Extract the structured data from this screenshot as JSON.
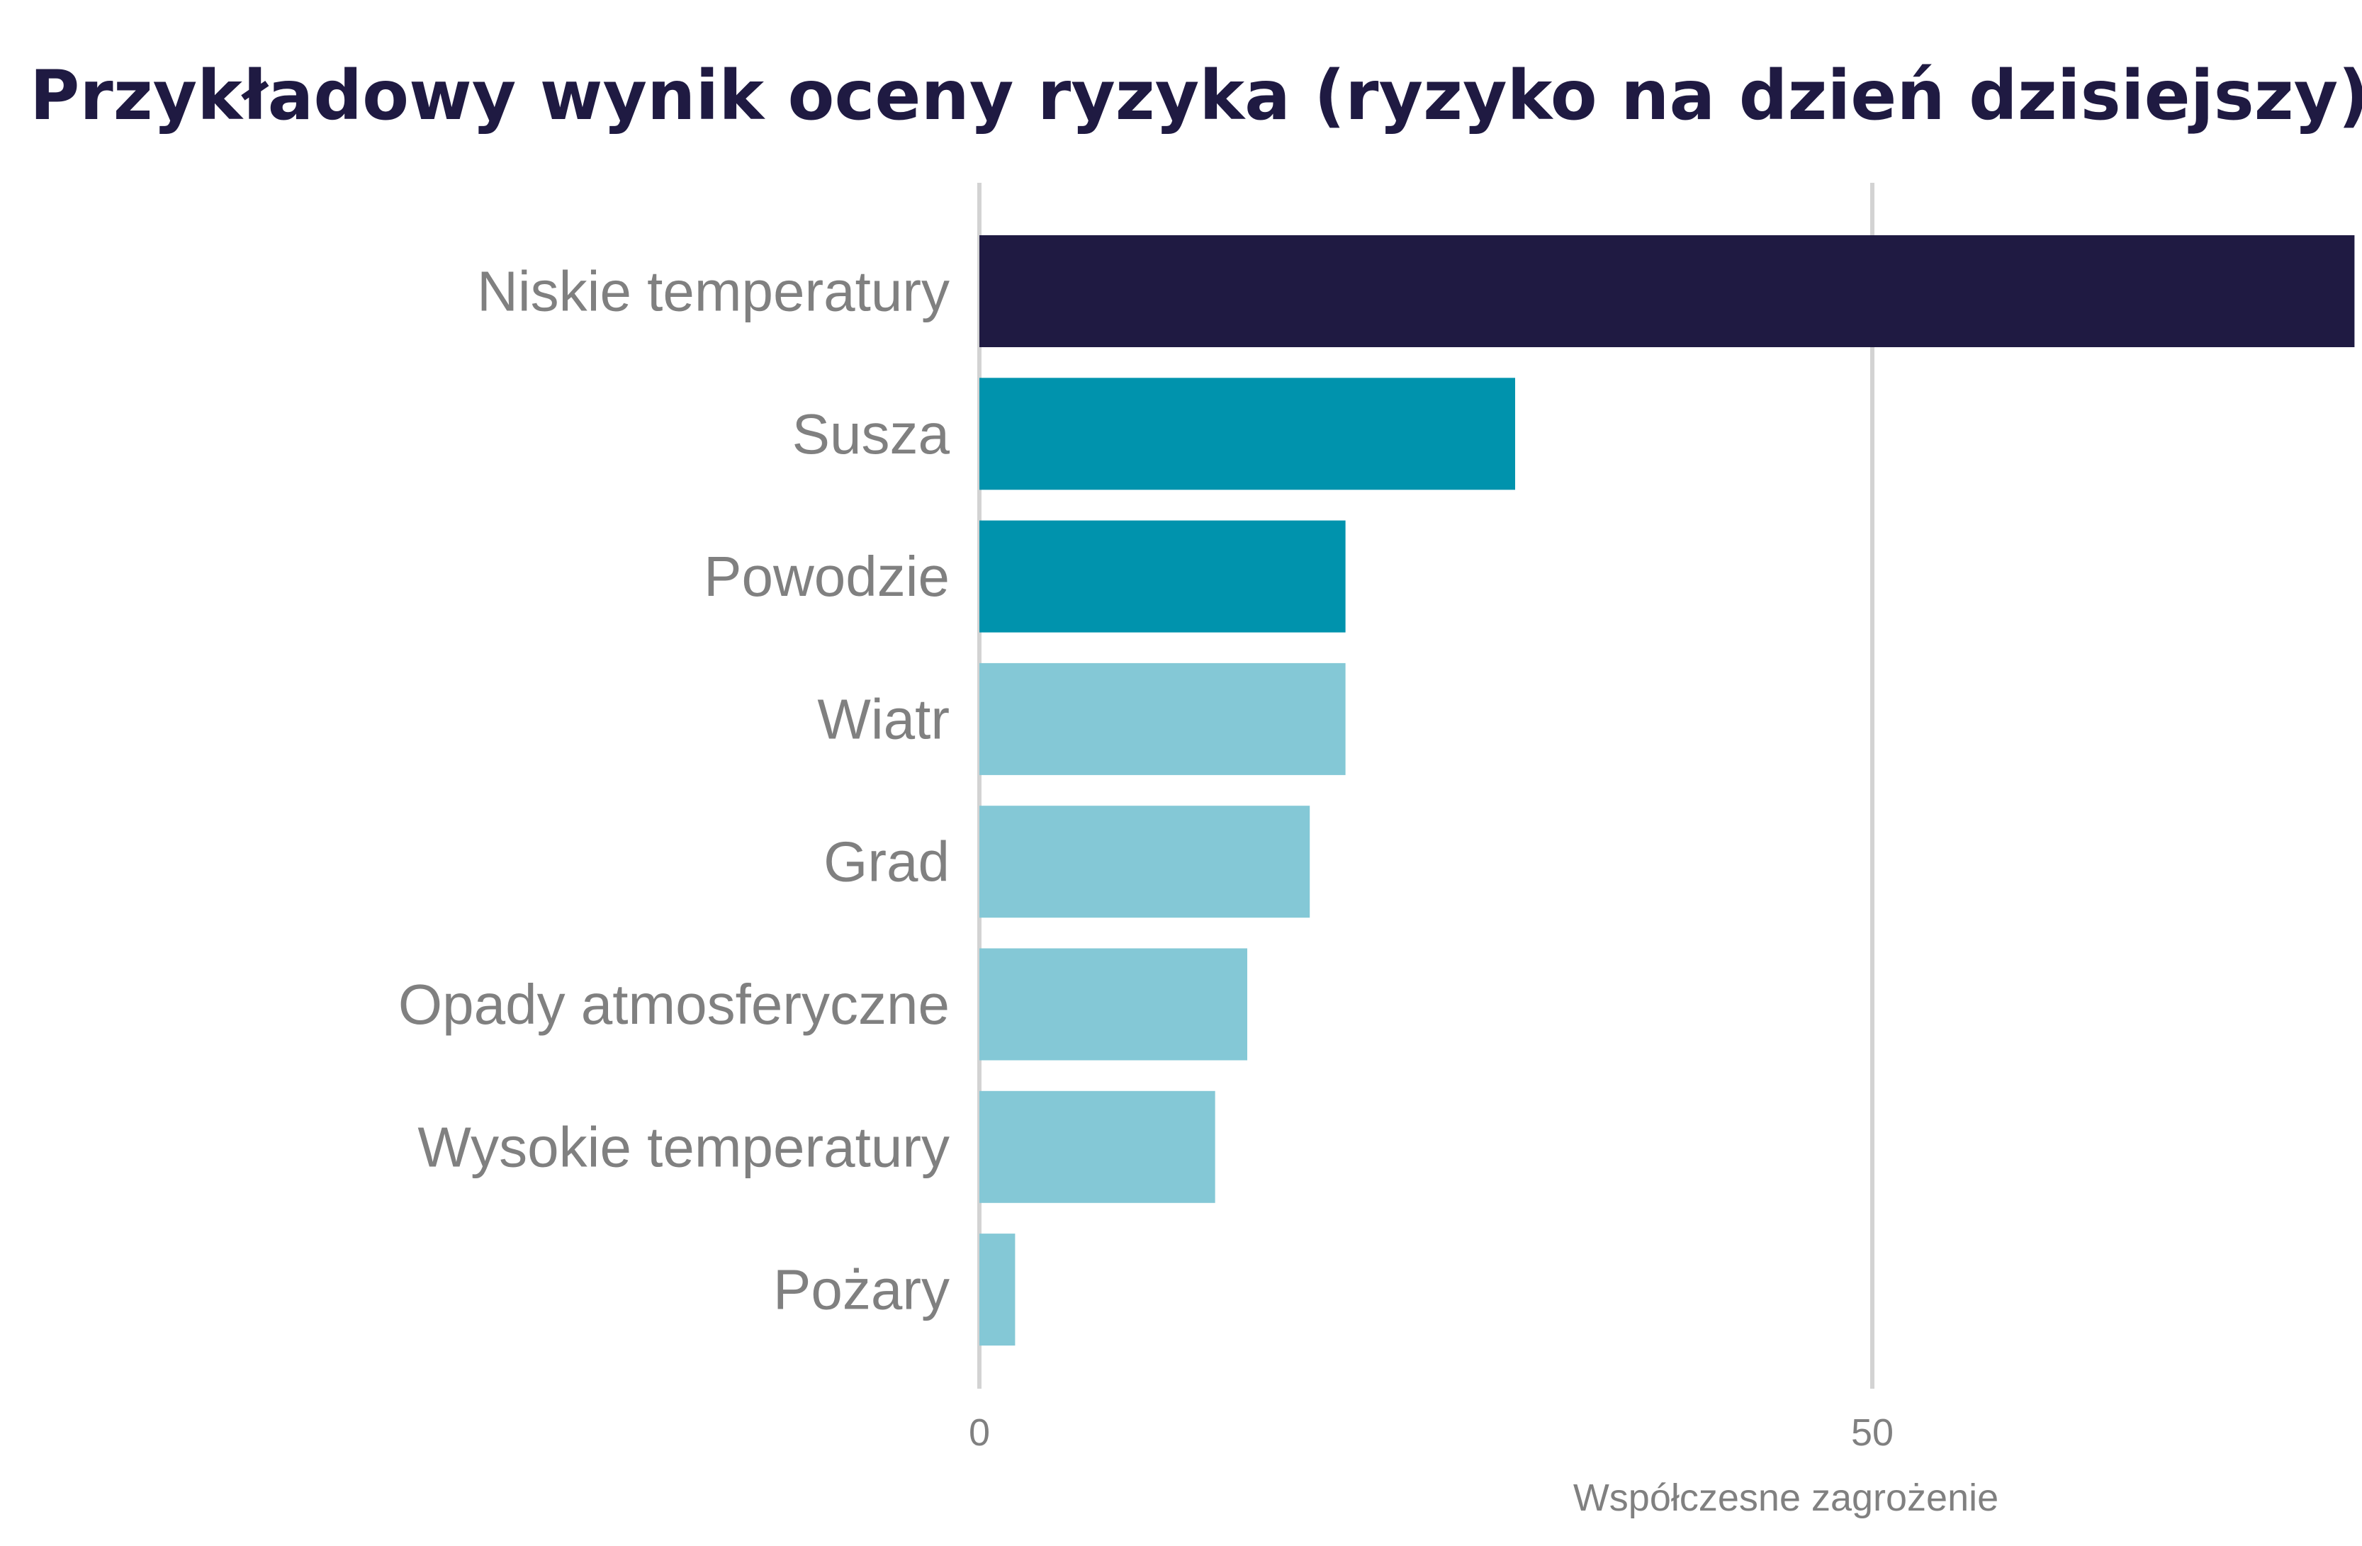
{
  "chart_data": {
    "type": "bar",
    "orientation": "horizontal",
    "title": "Przykładowy wynik oceny ryzyka (ryzyko na dzień dzisiejszy)",
    "xlabel": "Współczesne zagrożenie",
    "ylabel": "",
    "xlim": [
      0,
      77
    ],
    "xticks": [
      0,
      50
    ],
    "xtick_labels": [
      "0",
      "50"
    ],
    "grid": "vertical",
    "legend": "none",
    "categories": [
      "Niskie temperatury",
      "Susza",
      "Powodzie",
      "Wiatr",
      "Grad",
      "Opady atmosferyczne",
      "Wysokie temperatury",
      "Pożary"
    ],
    "values": [
      77,
      30,
      20.5,
      20.5,
      18.5,
      15,
      13.2,
      2
    ],
    "bar_colors": [
      "#1f1a42",
      "#0093ad",
      "#0093ad",
      "#84c8d6",
      "#84c8d6",
      "#84c8d6",
      "#84c8d6",
      "#84c8d6"
    ],
    "colors": {
      "title": "#1f1a42",
      "labels": "#808080",
      "gridline": "#d3d3d3"
    }
  }
}
